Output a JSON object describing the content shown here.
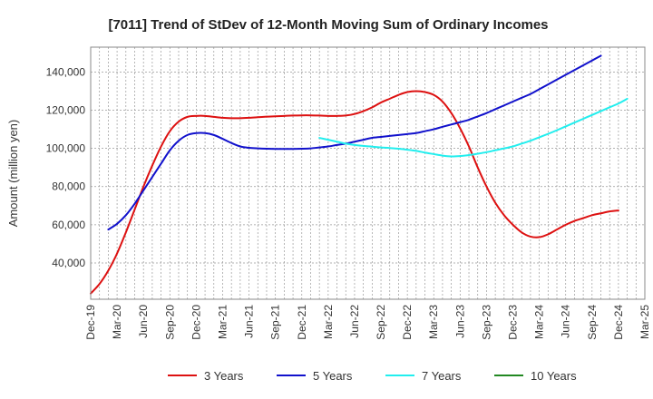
{
  "chart_data": {
    "type": "line",
    "title": "[7011]  Trend of StDev of 12-Month Moving Sum of Ordinary Incomes",
    "xlabel": "",
    "ylabel": "Amount (million yen)",
    "ylim": [
      21000,
      153000
    ],
    "yticks": [
      40000,
      60000,
      80000,
      100000,
      120000,
      140000
    ],
    "ytick_labels": [
      "40,000",
      "60,000",
      "80,000",
      "100,000",
      "120,000",
      "140,000"
    ],
    "x_tick_labels": [
      "Dec-19",
      "Mar-20",
      "Jun-20",
      "Sep-20",
      "Dec-20",
      "Mar-21",
      "Jun-21",
      "Sep-21",
      "Dec-21",
      "Mar-22",
      "Jun-22",
      "Sep-22",
      "Dec-22",
      "Mar-23",
      "Jun-23",
      "Sep-23",
      "Dec-23",
      "Mar-24",
      "Jun-24",
      "Sep-24",
      "Dec-24",
      "Mar-25"
    ],
    "x_unit": "months since Dec-19",
    "xlim": [
      0,
      63
    ],
    "grid": true,
    "legend_position": "bottom",
    "series": [
      {
        "name": "3 Years",
        "color": "#dd1111",
        "points": [
          [
            0,
            24000
          ],
          [
            1,
            29000
          ],
          [
            2,
            36000
          ],
          [
            3,
            45000
          ],
          [
            4,
            56000
          ],
          [
            5,
            68000
          ],
          [
            6,
            80000
          ],
          [
            7,
            91000
          ],
          [
            8,
            101000
          ],
          [
            9,
            109000
          ],
          [
            10,
            114000
          ],
          [
            11,
            116500
          ],
          [
            12,
            117000
          ],
          [
            13,
            117000
          ],
          [
            14,
            116500
          ],
          [
            15,
            116000
          ],
          [
            16,
            115800
          ],
          [
            17,
            115800
          ],
          [
            18,
            116000
          ],
          [
            19,
            116300
          ],
          [
            20,
            116600
          ],
          [
            21,
            116800
          ],
          [
            22,
            117000
          ],
          [
            23,
            117200
          ],
          [
            24,
            117300
          ],
          [
            25,
            117300
          ],
          [
            26,
            117200
          ],
          [
            27,
            117000
          ],
          [
            28,
            117000
          ],
          [
            29,
            117200
          ],
          [
            30,
            118000
          ],
          [
            31,
            119500
          ],
          [
            32,
            121500
          ],
          [
            33,
            124000
          ],
          [
            34,
            126000
          ],
          [
            35,
            128000
          ],
          [
            36,
            129500
          ],
          [
            37,
            130000
          ],
          [
            38,
            129500
          ],
          [
            39,
            128000
          ],
          [
            40,
            124500
          ],
          [
            41,
            118500
          ],
          [
            42,
            110500
          ],
          [
            43,
            101000
          ],
          [
            44,
            90000
          ],
          [
            45,
            80000
          ],
          [
            46,
            71500
          ],
          [
            47,
            65000
          ],
          [
            48,
            60000
          ],
          [
            49,
            56000
          ],
          [
            50,
            53800
          ],
          [
            51,
            53500
          ],
          [
            52,
            55000
          ],
          [
            53,
            57500
          ],
          [
            54,
            60000
          ],
          [
            55,
            62000
          ],
          [
            56,
            63500
          ],
          [
            57,
            65000
          ],
          [
            58,
            66000
          ],
          [
            59,
            67000
          ],
          [
            60,
            67500
          ]
        ]
      },
      {
        "name": "5 Years",
        "color": "#1111cc",
        "points": [
          [
            2,
            57500
          ],
          [
            3,
            60500
          ],
          [
            4,
            65000
          ],
          [
            5,
            71000
          ],
          [
            6,
            78000
          ],
          [
            7,
            85000
          ],
          [
            8,
            92000
          ],
          [
            9,
            99000
          ],
          [
            10,
            104000
          ],
          [
            11,
            107000
          ],
          [
            12,
            108000
          ],
          [
            13,
            108000
          ],
          [
            14,
            107000
          ],
          [
            15,
            105000
          ],
          [
            16,
            102800
          ],
          [
            17,
            101000
          ],
          [
            18,
            100300
          ],
          [
            19,
            100000
          ],
          [
            20,
            99800
          ],
          [
            21,
            99700
          ],
          [
            22,
            99700
          ],
          [
            23,
            99700
          ],
          [
            24,
            99800
          ],
          [
            25,
            100000
          ],
          [
            26,
            100500
          ],
          [
            27,
            101000
          ],
          [
            28,
            101800
          ],
          [
            29,
            102500
          ],
          [
            30,
            103500
          ],
          [
            31,
            104500
          ],
          [
            32,
            105500
          ],
          [
            33,
            106000
          ],
          [
            34,
            106500
          ],
          [
            35,
            107000
          ],
          [
            36,
            107500
          ],
          [
            37,
            108000
          ],
          [
            38,
            109000
          ],
          [
            39,
            110000
          ],
          [
            40,
            111300
          ],
          [
            41,
            112500
          ],
          [
            42,
            113700
          ],
          [
            43,
            115000
          ],
          [
            44,
            116700
          ],
          [
            45,
            118500
          ],
          [
            46,
            120500
          ],
          [
            47,
            122500
          ],
          [
            48,
            124500
          ],
          [
            49,
            126500
          ],
          [
            50,
            128500
          ],
          [
            51,
            131000
          ],
          [
            52,
            133500
          ],
          [
            53,
            136000
          ],
          [
            54,
            138500
          ],
          [
            55,
            141000
          ],
          [
            56,
            143500
          ],
          [
            57,
            146000
          ],
          [
            58,
            148500
          ]
        ]
      },
      {
        "name": "7 Years",
        "color": "#22eeee",
        "points": [
          [
            26,
            105500
          ],
          [
            27,
            104500
          ],
          [
            28,
            103500
          ],
          [
            29,
            102500
          ],
          [
            30,
            101800
          ],
          [
            31,
            101300
          ],
          [
            32,
            100900
          ],
          [
            33,
            100500
          ],
          [
            34,
            100200
          ],
          [
            35,
            99800
          ],
          [
            36,
            99300
          ],
          [
            37,
            98700
          ],
          [
            38,
            97800
          ],
          [
            39,
            97000
          ],
          [
            40,
            96200
          ],
          [
            41,
            95800
          ],
          [
            42,
            96000
          ],
          [
            43,
            96500
          ],
          [
            44,
            97200
          ],
          [
            45,
            98000
          ],
          [
            46,
            99000
          ],
          [
            47,
            100000
          ],
          [
            48,
            101000
          ],
          [
            49,
            102500
          ],
          [
            50,
            104000
          ],
          [
            51,
            105800
          ],
          [
            52,
            107600
          ],
          [
            53,
            109500
          ],
          [
            54,
            111500
          ],
          [
            55,
            113500
          ],
          [
            56,
            115500
          ],
          [
            57,
            117500
          ],
          [
            58,
            119500
          ],
          [
            59,
            121500
          ],
          [
            60,
            123500
          ],
          [
            61,
            126000
          ]
        ]
      },
      {
        "name": "10 Years",
        "color": "#228822",
        "points": []
      }
    ]
  }
}
